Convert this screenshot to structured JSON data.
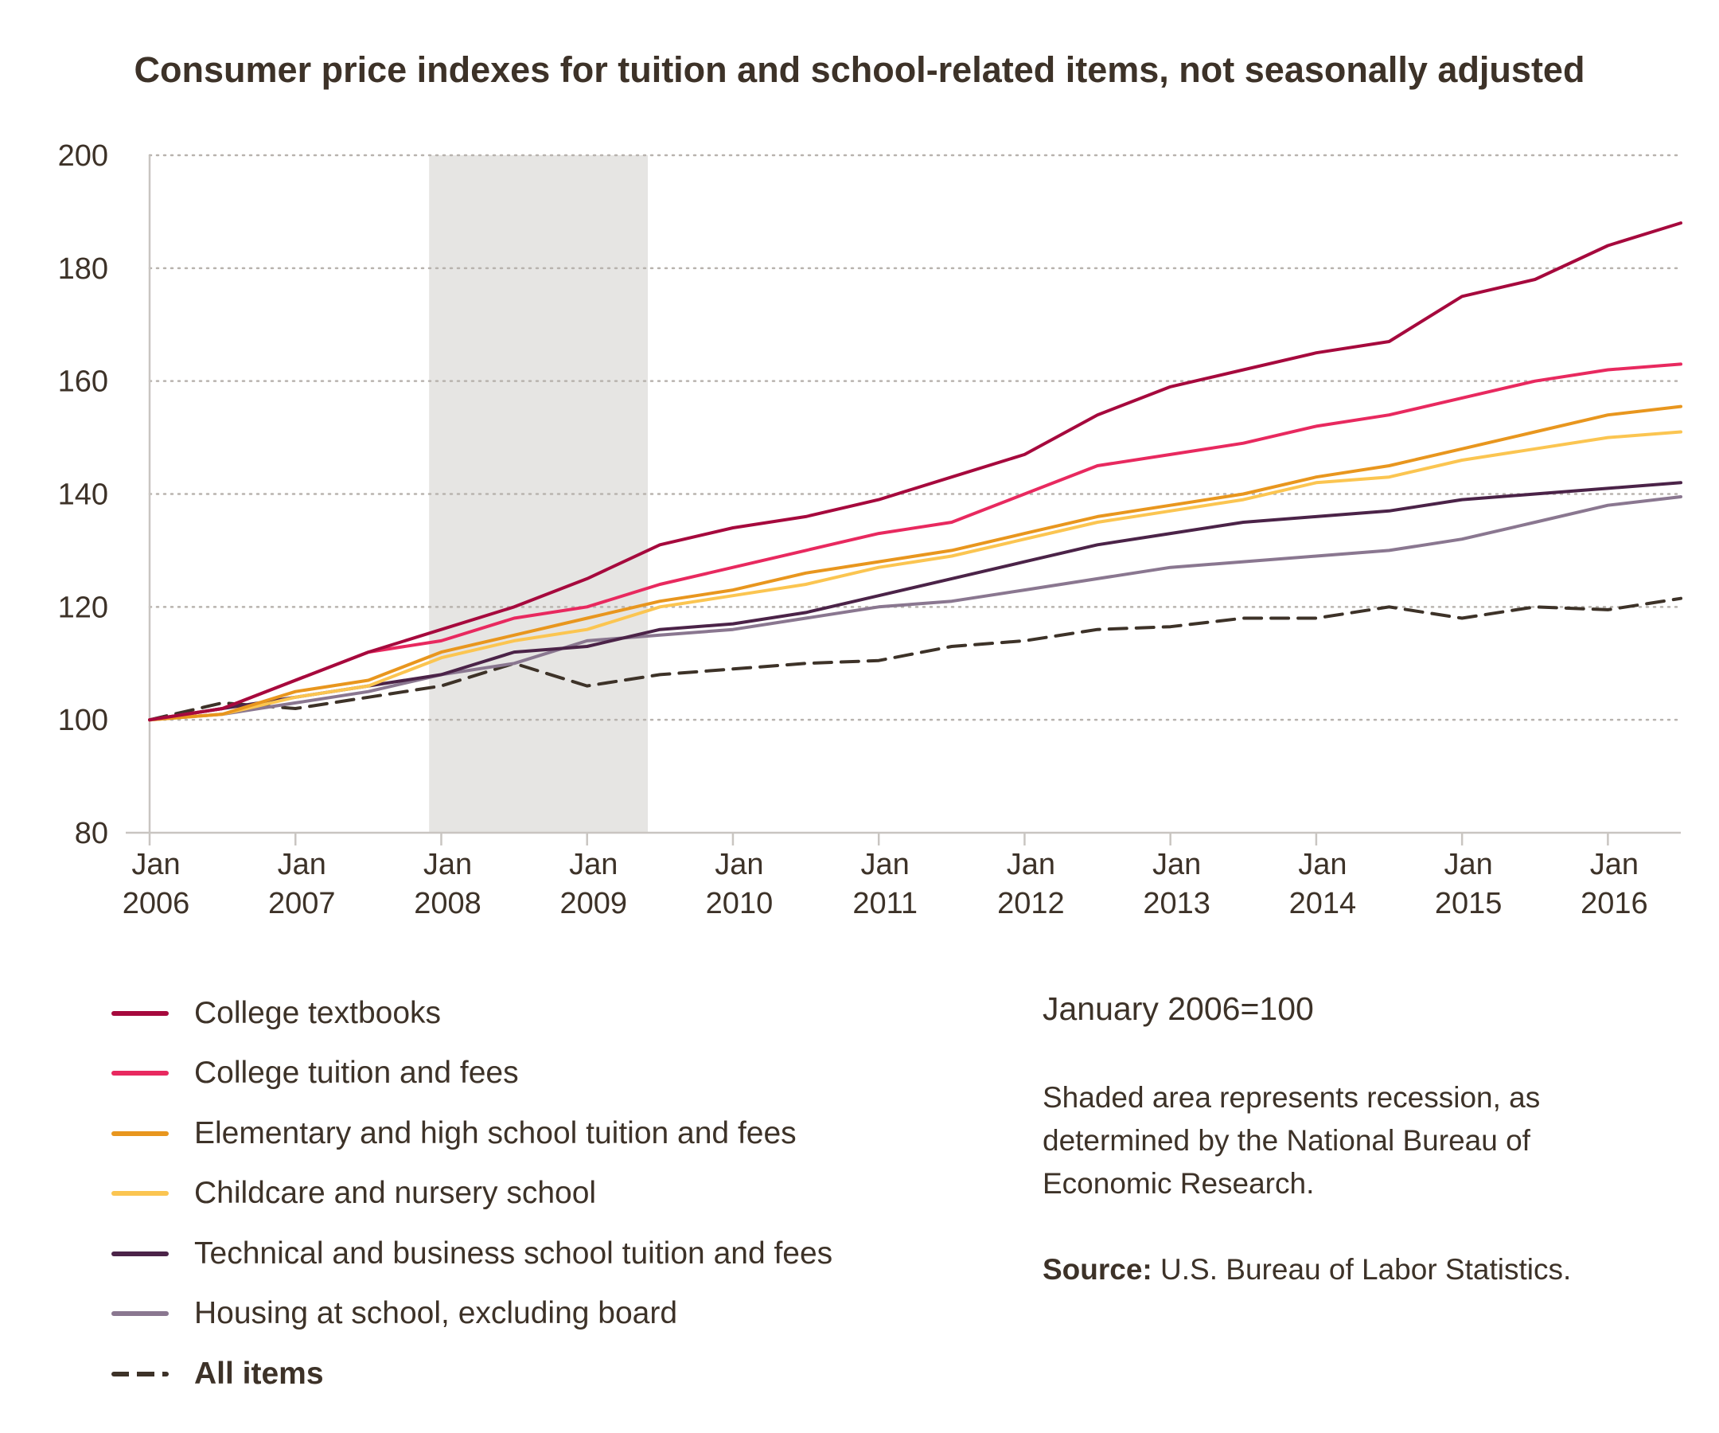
{
  "title": "Consumer price indexes for tuition and school-related items, not seasonally adjusted",
  "chart_data": {
    "type": "line",
    "title": "Consumer price indexes for tuition and school-related items, not seasonally adjusted",
    "xlabel": "",
    "ylabel": "",
    "x_range": [
      "2006-01",
      "2016-07"
    ],
    "ylim": [
      80,
      200
    ],
    "y_ticks": [
      80,
      100,
      120,
      140,
      160,
      180,
      200
    ],
    "x_ticks": [
      {
        "label": "Jan 2006",
        "year": 2006
      },
      {
        "label": "Jan 2007",
        "year": 2007
      },
      {
        "label": "Jan 2008",
        "year": 2008
      },
      {
        "label": "Jan 2009",
        "year": 2009
      },
      {
        "label": "Jan 2010",
        "year": 2010
      },
      {
        "label": "Jan 2011",
        "year": 2011
      },
      {
        "label": "Jan 2012",
        "year": 2012
      },
      {
        "label": "Jan 2013",
        "year": 2013
      },
      {
        "label": "Jan 2014",
        "year": 2014
      },
      {
        "label": "Jan 2015",
        "year": 2015
      },
      {
        "label": "Jan 2016",
        "year": 2016
      }
    ],
    "grid": "horizontal dotted",
    "recession": {
      "start": "2007-12",
      "end": "2009-06"
    },
    "x_points": [
      "2006-01",
      "2006-07",
      "2007-01",
      "2007-07",
      "2008-01",
      "2008-07",
      "2009-01",
      "2009-07",
      "2010-01",
      "2010-07",
      "2011-01",
      "2011-07",
      "2012-01",
      "2012-07",
      "2013-01",
      "2013-07",
      "2014-01",
      "2014-07",
      "2015-01",
      "2015-07",
      "2016-01",
      "2016-07"
    ],
    "series": [
      {
        "name": "College textbooks",
        "color": "#a6093d",
        "values": [
          100,
          102,
          107,
          112,
          116,
          120,
          125,
          131,
          134,
          136,
          139,
          143,
          147,
          154,
          159,
          162,
          165,
          167,
          175,
          178,
          184,
          188
        ]
      },
      {
        "name": "College tuition and fees",
        "color": "#e8295f",
        "values": [
          100,
          102,
          107,
          112,
          114,
          118,
          120,
          124,
          127,
          130,
          133,
          135,
          140,
          145,
          147,
          149,
          152,
          154,
          157,
          160,
          162,
          163
        ]
      },
      {
        "name": "Elementary and high school tuition and fees",
        "color": "#e8961e",
        "values": [
          100,
          101,
          105,
          107,
          112,
          115,
          118,
          121,
          123,
          126,
          128,
          130,
          133,
          136,
          138,
          140,
          143,
          145,
          148,
          151,
          154,
          155.5
        ]
      },
      {
        "name": "Childcare and nursery school",
        "color": "#fbc551",
        "values": [
          100,
          101,
          104,
          106,
          111,
          114,
          116,
          120,
          122,
          124,
          127,
          129,
          132,
          135,
          137,
          139,
          142,
          143,
          146,
          148,
          150,
          151
        ]
      },
      {
        "name": "Technical and business school tuition and fees",
        "color": "#4b2348",
        "values": [
          100,
          102,
          104,
          106,
          108,
          112,
          113,
          116,
          117,
          119,
          122,
          125,
          128,
          131,
          133,
          135,
          136,
          137,
          139,
          140,
          141,
          142
        ]
      },
      {
        "name": "Housing at school, excluding board",
        "color": "#8a7790",
        "values": [
          100,
          101,
          103,
          105,
          108,
          110,
          114,
          115,
          116,
          118,
          120,
          121,
          123,
          125,
          127,
          128,
          129,
          130,
          132,
          135,
          138,
          139.5
        ]
      },
      {
        "name": "All items",
        "color": "#3d3228",
        "dashed": true,
        "values": [
          100,
          103,
          102,
          104,
          106,
          110,
          106,
          108,
          109,
          110,
          110.5,
          113,
          114,
          116,
          116.5,
          118,
          118,
          120,
          118,
          120,
          119.5,
          121.5
        ]
      }
    ]
  },
  "legend": [
    {
      "label": "College textbooks",
      "color": "#a6093d",
      "bold": false,
      "dashed": false
    },
    {
      "label": "College tuition and fees",
      "color": "#e8295f",
      "bold": false,
      "dashed": false
    },
    {
      "label": "Elementary and high school tuition and fees",
      "color": "#e8961e",
      "bold": false,
      "dashed": false
    },
    {
      "label": "Childcare and nursery school",
      "color": "#fbc551",
      "bold": false,
      "dashed": false
    },
    {
      "label": "Technical and business school tuition and fees",
      "color": "#4b2348",
      "bold": false,
      "dashed": false
    },
    {
      "label": "Housing at school, excluding board",
      "color": "#8a7790",
      "bold": false,
      "dashed": false
    },
    {
      "label": "All items",
      "color": "#3d3228",
      "bold": true,
      "dashed": true
    }
  ],
  "notes": {
    "base": "January 2006=100",
    "recession": "Shaded area represents recession, as determined by the National Bureau of Economic Research.",
    "source_label": "Source:",
    "source_text": "U.S. Bureau of Labor Statistics."
  }
}
